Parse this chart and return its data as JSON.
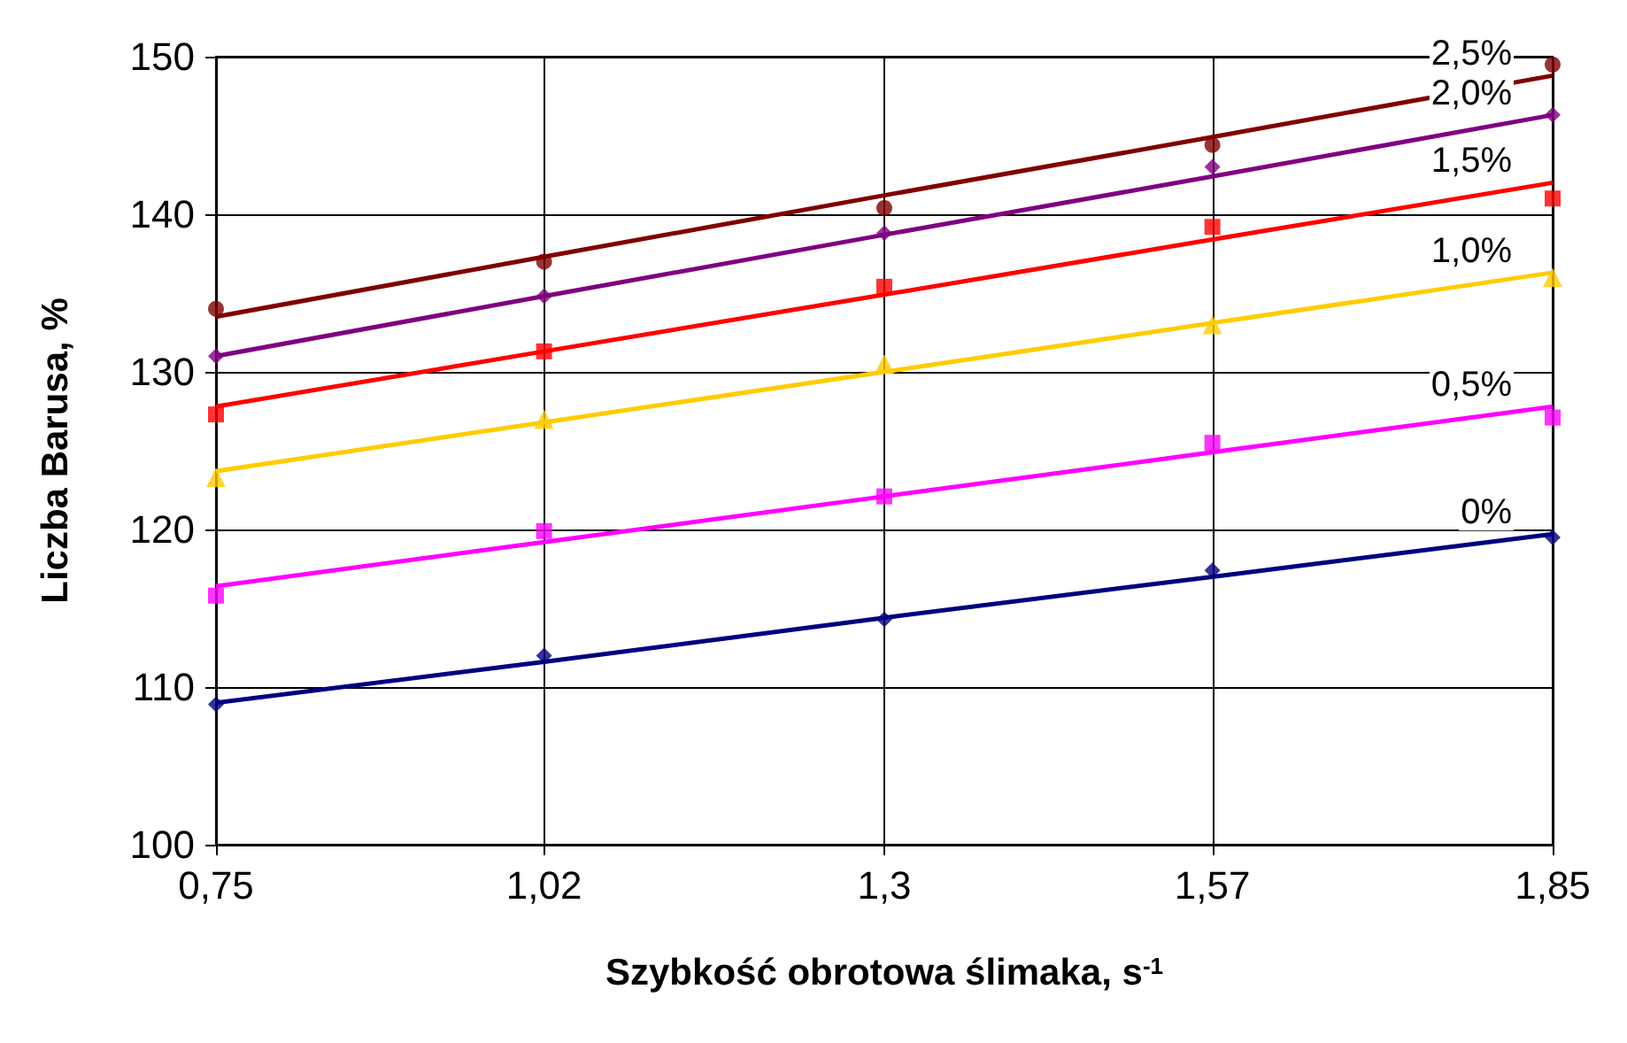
{
  "chart_data": {
    "type": "scatter",
    "xlabel": "Szybkość obrotowa ślimaka, s$^{-1}$",
    "ylabel": "Liczba Barusa, %",
    "x": [
      0.75,
      1.02,
      1.3,
      1.57,
      1.85
    ],
    "xlim": [
      0.75,
      1.85
    ],
    "xticks": [
      {
        "value": 0.75,
        "label": "0,75"
      },
      {
        "value": 1.02,
        "label": "1,02"
      },
      {
        "value": 1.3,
        "label": "1,3"
      },
      {
        "value": 1.57,
        "label": "1,57"
      },
      {
        "value": 1.85,
        "label": "1,85"
      }
    ],
    "ylim": [
      100,
      150
    ],
    "yticks": [
      100,
      110,
      120,
      130,
      140,
      150
    ],
    "grid": true,
    "series": [
      {
        "color": "#800000",
        "marker": "circle",
        "values": [
          134,
          137,
          140.4,
          144.4,
          149.5
        ]
      },
      {
        "type": "line",
        "name": "2,5%",
        "marker": "none",
        "color": "#800000",
        "values": [
          133.5,
          137.3,
          141.2,
          144.9,
          148.8
        ]
      },
      {
        "color": "#800080",
        "marker": "diamond",
        "values": [
          131,
          134.8,
          138.8,
          143,
          146.3
        ]
      },
      {
        "type": "line",
        "name": "2,0%",
        "marker": "none",
        "color": "#800080",
        "values": [
          131,
          134.8,
          138.7,
          142.4,
          146.3
        ]
      },
      {
        "color": "#ff0000",
        "marker": "square",
        "values": [
          127.3,
          131.3,
          135.4,
          139.2,
          141
        ]
      },
      {
        "type": "line",
        "name": "1,5%",
        "marker": "none",
        "color": "#ff0000",
        "values": [
          127.8,
          131.3,
          134.9,
          138.4,
          142
        ]
      },
      {
        "color": "#ffcc00",
        "marker": "triangle",
        "values": [
          123.3,
          127,
          130.5,
          133,
          136
        ]
      },
      {
        "type": "line",
        "name": "1,0%",
        "marker": "none",
        "color": "#ffcc00",
        "values": [
          123.7,
          126.8,
          130,
          133.1,
          136.3
        ]
      },
      {
        "color": "#ff00ff",
        "marker": "square",
        "values": [
          115.8,
          119.9,
          122.1,
          125.5,
          127.1
        ]
      },
      {
        "type": "line",
        "name": "0,5%",
        "marker": "none",
        "color": "#ff00ff",
        "values": [
          116.4,
          119.2,
          122.1,
          124.9,
          127.8
        ]
      },
      {
        "color": "#000080",
        "marker": "diamond",
        "values": [
          108.9,
          112,
          114.3,
          117.4,
          119.5
        ]
      },
      {
        "type": "line",
        "name": "0%",
        "marker": "none",
        "color": "#000080",
        "values": [
          109,
          111.6,
          114.4,
          117,
          119.7
        ]
      }
    ]
  }
}
